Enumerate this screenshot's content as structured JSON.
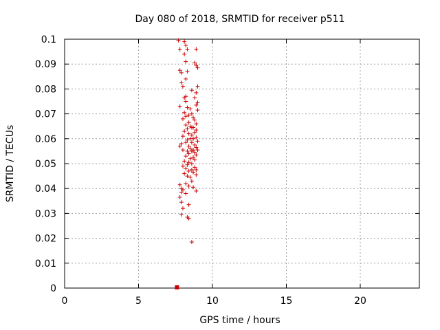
{
  "chart_data": {
    "type": "scatter",
    "title": "Day 080 of 2018, SRMTID for receiver p511",
    "xlabel": "GPS time / hours",
    "ylabel": "SRMTID / TECUs",
    "xlim": [
      0,
      24
    ],
    "ylim": [
      0,
      0.1
    ],
    "xticks": [
      "0",
      "5",
      "10",
      "15",
      "20"
    ],
    "yticks": [
      "0",
      "0.01",
      "0.02",
      "0.03",
      "0.04",
      "0.05",
      "0.06",
      "0.07",
      "0.08",
      "0.09",
      "0.1"
    ],
    "grid": true,
    "marker_color": "#cc0000",
    "zero_marker": {
      "x": 7.6,
      "y": 0
    },
    "points": [
      [
        7.7,
        0.0995
      ],
      [
        8.1,
        0.099
      ],
      [
        8.2,
        0.0975
      ],
      [
        7.8,
        0.096
      ],
      [
        8.3,
        0.096
      ],
      [
        8.9,
        0.096
      ],
      [
        8.1,
        0.094
      ],
      [
        8.2,
        0.091
      ],
      [
        8.8,
        0.0905
      ],
      [
        8.9,
        0.0895
      ],
      [
        9.0,
        0.0885
      ],
      [
        7.8,
        0.0875
      ],
      [
        7.9,
        0.0865
      ],
      [
        8.3,
        0.087
      ],
      [
        8.2,
        0.084
      ],
      [
        7.9,
        0.0825
      ],
      [
        8.0,
        0.081
      ],
      [
        9.0,
        0.081
      ],
      [
        8.6,
        0.0795
      ],
      [
        8.9,
        0.0785
      ],
      [
        8.2,
        0.077
      ],
      [
        8.1,
        0.0765
      ],
      [
        8.8,
        0.0765
      ],
      [
        8.2,
        0.075
      ],
      [
        9.0,
        0.0745
      ],
      [
        8.9,
        0.0735
      ],
      [
        8.3,
        0.0725
      ],
      [
        7.8,
        0.073
      ],
      [
        8.5,
        0.072
      ],
      [
        9.0,
        0.0715
      ],
      [
        8.1,
        0.0705
      ],
      [
        8.4,
        0.0695
      ],
      [
        8.6,
        0.07
      ],
      [
        8.2,
        0.069
      ],
      [
        8.7,
        0.0685
      ],
      [
        8.0,
        0.068
      ],
      [
        8.8,
        0.0675
      ],
      [
        8.4,
        0.0665
      ],
      [
        8.9,
        0.066
      ],
      [
        8.2,
        0.0655
      ],
      [
        8.5,
        0.065
      ],
      [
        8.6,
        0.0645
      ],
      [
        8.7,
        0.0645
      ],
      [
        8.3,
        0.064
      ],
      [
        8.9,
        0.0635
      ],
      [
        8.1,
        0.063
      ],
      [
        8.8,
        0.0625
      ],
      [
        8.4,
        0.062
      ],
      [
        8.6,
        0.0615
      ],
      [
        8.0,
        0.061
      ],
      [
        8.9,
        0.0605
      ],
      [
        8.5,
        0.06
      ],
      [
        8.7,
        0.06
      ],
      [
        8.3,
        0.0595
      ],
      [
        9.0,
        0.059
      ],
      [
        8.2,
        0.0585
      ],
      [
        8.6,
        0.0585
      ],
      [
        7.9,
        0.058
      ],
      [
        8.8,
        0.0575
      ],
      [
        8.4,
        0.057
      ],
      [
        7.8,
        0.057
      ],
      [
        8.9,
        0.0565
      ],
      [
        8.5,
        0.056
      ],
      [
        8.7,
        0.0555
      ],
      [
        8.0,
        0.0555
      ],
      [
        9.0,
        0.0555
      ],
      [
        8.3,
        0.055
      ],
      [
        8.6,
        0.055
      ],
      [
        8.8,
        0.0545
      ],
      [
        8.4,
        0.054
      ],
      [
        8.9,
        0.0535
      ],
      [
        8.2,
        0.053
      ],
      [
        8.7,
        0.0525
      ],
      [
        8.5,
        0.052
      ],
      [
        8.8,
        0.0515
      ],
      [
        8.1,
        0.051
      ],
      [
        8.4,
        0.0505
      ],
      [
        8.6,
        0.05
      ],
      [
        8.3,
        0.0495
      ],
      [
        8.0,
        0.049
      ],
      [
        8.8,
        0.0485
      ],
      [
        8.2,
        0.048
      ],
      [
        8.6,
        0.0475
      ],
      [
        8.9,
        0.0475
      ],
      [
        8.4,
        0.047
      ],
      [
        8.7,
        0.0465
      ],
      [
        8.1,
        0.046
      ],
      [
        8.9,
        0.0455
      ],
      [
        8.3,
        0.045
      ],
      [
        8.5,
        0.0445
      ],
      [
        8.6,
        0.043
      ],
      [
        8.2,
        0.042
      ],
      [
        7.8,
        0.0415
      ],
      [
        8.4,
        0.041
      ],
      [
        8.7,
        0.0405
      ],
      [
        7.9,
        0.04
      ],
      [
        8.0,
        0.0395
      ],
      [
        8.9,
        0.039
      ],
      [
        7.9,
        0.0385
      ],
      [
        8.2,
        0.038
      ],
      [
        7.8,
        0.0365
      ],
      [
        7.9,
        0.0345
      ],
      [
        8.4,
        0.0335
      ],
      [
        8.0,
        0.032
      ],
      [
        7.9,
        0.0295
      ],
      [
        8.3,
        0.0285
      ],
      [
        8.4,
        0.028
      ],
      [
        8.6,
        0.0185
      ]
    ]
  }
}
